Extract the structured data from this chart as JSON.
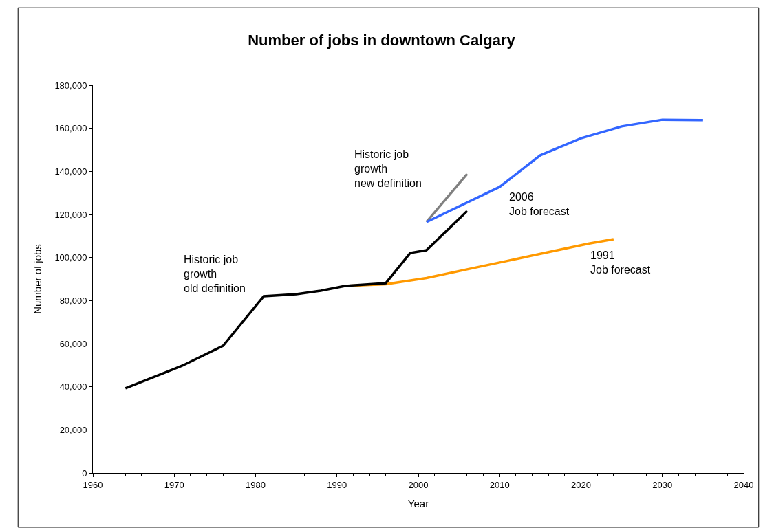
{
  "chart_data": {
    "type": "line",
    "title": "Number of jobs in downtown Calgary",
    "xlabel": "Year",
    "ylabel": "Number of jobs",
    "xlim": [
      1960,
      2040
    ],
    "xticks": [
      1960,
      1970,
      1980,
      1990,
      2000,
      2010,
      2020,
      2030,
      2040
    ],
    "ylim": [
      0,
      180000
    ],
    "yticks": [
      {
        "value": 0,
        "label": "0"
      },
      {
        "value": 20000,
        "label": "20,000"
      },
      {
        "value": 40000,
        "label": "40,000"
      },
      {
        "value": 60000,
        "label": "60,000"
      },
      {
        "value": 80000,
        "label": "80,000"
      },
      {
        "value": 100000,
        "label": "100,000"
      },
      {
        "value": 120000,
        "label": "120,000"
      },
      {
        "value": 140000,
        "label": "140,000"
      },
      {
        "value": 160000,
        "label": "160,000"
      },
      {
        "value": 180000,
        "label": "180,000"
      }
    ],
    "legend": false,
    "marker": "none",
    "line_style": "solid",
    "series": [
      {
        "name": "1991\nJob forecast",
        "color": "#ff9900",
        "x": [
          1991,
          1996,
          2001,
          2006,
          2011,
          2016,
          2021,
          2024
        ],
        "values": [
          86800,
          87600,
          90500,
          94500,
          98500,
          102500,
          106500,
          108500
        ]
      },
      {
        "name": "Historic job\ngrowth\nold definition",
        "color": "#000000",
        "x": [
          1964,
          1971,
          1976,
          1981,
          1985,
          1988,
          1991,
          1996,
          1999,
          2001,
          2006
        ],
        "values": [
          39300,
          49800,
          59000,
          82000,
          83000,
          84600,
          86800,
          88100,
          102100,
          103400,
          121600
        ]
      },
      {
        "name": "Historic job\ngrowth\nnew definition",
        "color": "#808080",
        "x": [
          2001,
          2006
        ],
        "values": [
          116500,
          138800
        ]
      },
      {
        "name": "2006\nJob forecast",
        "color": "#3366ff",
        "x": [
          2001,
          2010,
          2015,
          2020,
          2025,
          2030,
          2035
        ],
        "values": [
          116500,
          132800,
          147500,
          155400,
          160900,
          164000,
          163800
        ]
      }
    ]
  }
}
